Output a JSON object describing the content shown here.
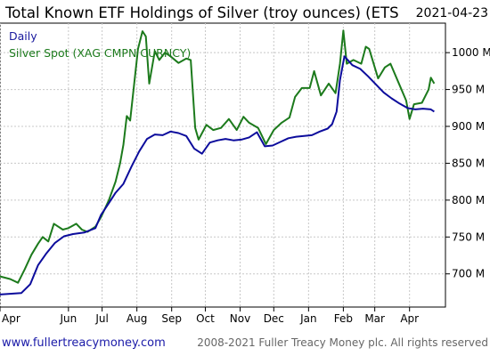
{
  "chart_data": {
    "type": "line",
    "title": "Total Known ETF Holdings of Silver (troy ounces) (ETS",
    "date": "2021-04-23",
    "legend_placement": "top-left",
    "grid": true,
    "xlim": [
      "2020-04-01",
      "2021-05-03"
    ],
    "ylim": [
      655,
      1040
    ],
    "y_ticks": [
      {
        "value": 700,
        "label": "700 M"
      },
      {
        "value": 750,
        "label": "750 M"
      },
      {
        "value": 800,
        "label": "800 M"
      },
      {
        "value": 850,
        "label": "850 M"
      },
      {
        "value": 900,
        "label": "900 M"
      },
      {
        "value": 950,
        "label": "950 M"
      },
      {
        "value": 1000,
        "label": "1000 M"
      }
    ],
    "x_ticks": [
      {
        "date": "2020-04-01",
        "label": "Apr"
      },
      {
        "date": "2020-06-01",
        "label": "Jun"
      },
      {
        "date": "2020-07-01",
        "label": "Jul"
      },
      {
        "date": "2020-08-01",
        "label": "Aug"
      },
      {
        "date": "2020-09-01",
        "label": "Sep"
      },
      {
        "date": "2020-10-01",
        "label": "Oct"
      },
      {
        "date": "2020-11-01",
        "label": "Nov"
      },
      {
        "date": "2020-12-01",
        "label": "Dec"
      },
      {
        "date": "2021-01-01",
        "label": "Jan"
      },
      {
        "date": "2021-02-01",
        "label": "Feb"
      },
      {
        "date": "2021-03-01",
        "label": "Mar"
      },
      {
        "date": "2021-04-01",
        "label": "Apr"
      }
    ],
    "series": [
      {
        "name": "Daily",
        "color": "#0c0c9c",
        "points": [
          [
            "2020-04-01",
            672
          ],
          [
            "2020-04-20",
            674
          ],
          [
            "2020-04-28",
            686
          ],
          [
            "2020-05-05",
            712
          ],
          [
            "2020-05-12",
            727
          ],
          [
            "2020-05-20",
            742
          ],
          [
            "2020-05-28",
            751
          ],
          [
            "2020-06-05",
            754
          ],
          [
            "2020-06-15",
            756
          ],
          [
            "2020-06-25",
            762
          ],
          [
            "2020-06-30",
            780
          ],
          [
            "2020-07-07",
            796
          ],
          [
            "2020-07-13",
            810
          ],
          [
            "2020-07-20",
            822
          ],
          [
            "2020-07-27",
            845
          ],
          [
            "2020-08-03",
            866
          ],
          [
            "2020-08-10",
            883
          ],
          [
            "2020-08-17",
            889
          ],
          [
            "2020-08-24",
            888
          ],
          [
            "2020-08-31",
            893
          ],
          [
            "2020-09-07",
            891
          ],
          [
            "2020-09-14",
            887
          ],
          [
            "2020-09-21",
            870
          ],
          [
            "2020-09-28",
            863
          ],
          [
            "2020-10-05",
            878
          ],
          [
            "2020-10-12",
            881
          ],
          [
            "2020-10-19",
            883
          ],
          [
            "2020-10-26",
            881
          ],
          [
            "2020-11-02",
            882
          ],
          [
            "2020-11-09",
            885
          ],
          [
            "2020-11-16",
            892
          ],
          [
            "2020-11-23",
            873
          ],
          [
            "2020-11-30",
            874
          ],
          [
            "2020-12-07",
            879
          ],
          [
            "2020-12-14",
            884
          ],
          [
            "2020-12-21",
            886
          ],
          [
            "2020-12-28",
            887
          ],
          [
            "2021-01-04",
            888
          ],
          [
            "2021-01-11",
            893
          ],
          [
            "2021-01-18",
            897
          ],
          [
            "2021-01-22",
            903
          ],
          [
            "2021-01-26",
            920
          ],
          [
            "2021-01-29",
            963
          ],
          [
            "2021-02-02",
            995
          ],
          [
            "2021-02-09",
            983
          ],
          [
            "2021-02-16",
            978
          ],
          [
            "2021-02-23",
            968
          ],
          [
            "2021-03-02",
            957
          ],
          [
            "2021-03-09",
            946
          ],
          [
            "2021-03-16",
            938
          ],
          [
            "2021-03-23",
            931
          ],
          [
            "2021-03-30",
            925
          ],
          [
            "2021-04-06",
            923
          ],
          [
            "2021-04-13",
            924
          ],
          [
            "2021-04-20",
            923
          ],
          [
            "2021-04-23",
            920
          ]
        ]
      },
      {
        "name": "Silver Spot (XAG CMPN CURNCY)",
        "color": "#1c7a1c",
        "points": [
          [
            "2020-03-31",
            697
          ],
          [
            "2020-04-10",
            693
          ],
          [
            "2020-04-17",
            688
          ],
          [
            "2020-04-23",
            706
          ],
          [
            "2020-04-29",
            726
          ],
          [
            "2020-05-05",
            741
          ],
          [
            "2020-05-09",
            750
          ],
          [
            "2020-05-14",
            744
          ],
          [
            "2020-05-19",
            768
          ],
          [
            "2020-05-27",
            760
          ],
          [
            "2020-06-01",
            762
          ],
          [
            "2020-06-08",
            768
          ],
          [
            "2020-06-13",
            760
          ],
          [
            "2020-06-18",
            757
          ],
          [
            "2020-06-25",
            764
          ],
          [
            "2020-06-30",
            777
          ],
          [
            "2020-07-07",
            800
          ],
          [
            "2020-07-13",
            825
          ],
          [
            "2020-07-17",
            850
          ],
          [
            "2020-07-20",
            875
          ],
          [
            "2020-07-23",
            914
          ],
          [
            "2020-07-26",
            908
          ],
          [
            "2020-07-29",
            950
          ],
          [
            "2020-08-02",
            1005
          ],
          [
            "2020-08-06",
            1029
          ],
          [
            "2020-08-09",
            1022
          ],
          [
            "2020-08-12",
            958
          ],
          [
            "2020-08-17",
            1002
          ],
          [
            "2020-08-21",
            990
          ],
          [
            "2020-08-26",
            1000
          ],
          [
            "2020-08-31",
            995
          ],
          [
            "2020-09-07",
            986
          ],
          [
            "2020-09-14",
            992
          ],
          [
            "2020-09-18",
            990
          ],
          [
            "2020-09-22",
            898
          ],
          [
            "2020-09-25",
            882
          ],
          [
            "2020-10-02",
            902
          ],
          [
            "2020-10-08",
            895
          ],
          [
            "2020-10-15",
            898
          ],
          [
            "2020-10-22",
            910
          ],
          [
            "2020-10-29",
            895
          ],
          [
            "2020-11-04",
            913
          ],
          [
            "2020-11-09",
            905
          ],
          [
            "2020-11-17",
            898
          ],
          [
            "2020-11-24",
            876
          ],
          [
            "2020-12-01",
            895
          ],
          [
            "2020-12-08",
            905
          ],
          [
            "2020-12-15",
            912
          ],
          [
            "2020-12-20",
            940
          ],
          [
            "2020-12-26",
            952
          ],
          [
            "2021-01-02",
            952
          ],
          [
            "2021-01-06",
            975
          ],
          [
            "2021-01-12",
            942
          ],
          [
            "2021-01-19",
            958
          ],
          [
            "2021-01-25",
            945
          ],
          [
            "2021-01-29",
            985
          ],
          [
            "2021-02-01",
            1030
          ],
          [
            "2021-02-04",
            985
          ],
          [
            "2021-02-10",
            990
          ],
          [
            "2021-02-17",
            985
          ],
          [
            "2021-02-21",
            1008
          ],
          [
            "2021-02-24",
            1005
          ],
          [
            "2021-02-28",
            985
          ],
          [
            "2021-03-04",
            965
          ],
          [
            "2021-03-10",
            980
          ],
          [
            "2021-03-15",
            985
          ],
          [
            "2021-03-22",
            960
          ],
          [
            "2021-03-29",
            935
          ],
          [
            "2021-04-01",
            910
          ],
          [
            "2021-04-05",
            930
          ],
          [
            "2021-04-12",
            932
          ],
          [
            "2021-04-18",
            950
          ],
          [
            "2021-04-20",
            966
          ],
          [
            "2021-04-23",
            958
          ]
        ]
      }
    ]
  },
  "footer": {
    "link": "www.fullertreacymoney.com",
    "copyright": "2008-2021 Fuller Treacy Money plc. All rights reserved"
  }
}
